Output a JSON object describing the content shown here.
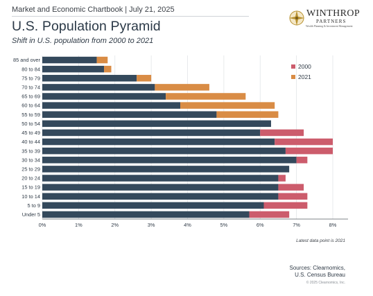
{
  "header": {
    "line": "Market and Economic Chartbook | July 21, 2025",
    "title": "U.S. Population Pyramid",
    "subtitle": "Shift in U.S. population from 2000 to 2021"
  },
  "logo": {
    "name": "WINTHROP",
    "sub": "PARTNERS",
    "tagline": "Wealth Planning & Investment Management",
    "icon": "compass-rose-icon"
  },
  "colors": {
    "common_bar": "#34495c",
    "y2000": "#cc5c6c",
    "y2021": "#d98c45",
    "grid": "#e1e4e7",
    "axis": "#555b61"
  },
  "chart_data": {
    "type": "bar",
    "orientation": "horizontal",
    "categories": [
      "85 and over",
      "80 to 84",
      "75 to 79",
      "70 to 74",
      "65 to 69",
      "60 to 64",
      "55 to 59",
      "50 to 54",
      "45 to 49",
      "40 to 44",
      "35 to 39",
      "30 to 34",
      "25 to 29",
      "20 to 24",
      "15 to 19",
      "10 to 14",
      "5 to 9",
      "Under 5"
    ],
    "series": [
      {
        "name": "2000",
        "values": [
          1.5,
          1.7,
          2.6,
          3.1,
          3.4,
          3.8,
          4.8,
          6.3,
          7.2,
          8.0,
          8.0,
          7.3,
          6.8,
          6.7,
          7.2,
          7.3,
          7.3,
          6.8
        ]
      },
      {
        "name": "2021",
        "values": [
          1.8,
          1.9,
          3.0,
          4.6,
          5.6,
          6.4,
          6.5,
          6.3,
          6.0,
          6.4,
          6.7,
          7.0,
          6.8,
          6.5,
          6.5,
          6.5,
          6.1,
          5.7
        ]
      }
    ],
    "xlim": [
      0,
      8
    ],
    "xticks": [
      "0%",
      "1%",
      "2%",
      "3%",
      "4%",
      "5%",
      "6%",
      "7%",
      "8%"
    ],
    "legend": {
      "placement": "top-right"
    },
    "grid": true
  },
  "footer": {
    "note": "Latest data point is 2021",
    "sources_line1": "Sources: Clearnomics,",
    "sources_line2": "U.S. Census Bureau",
    "copyright": "© 2025 Clearnomics, Inc."
  }
}
